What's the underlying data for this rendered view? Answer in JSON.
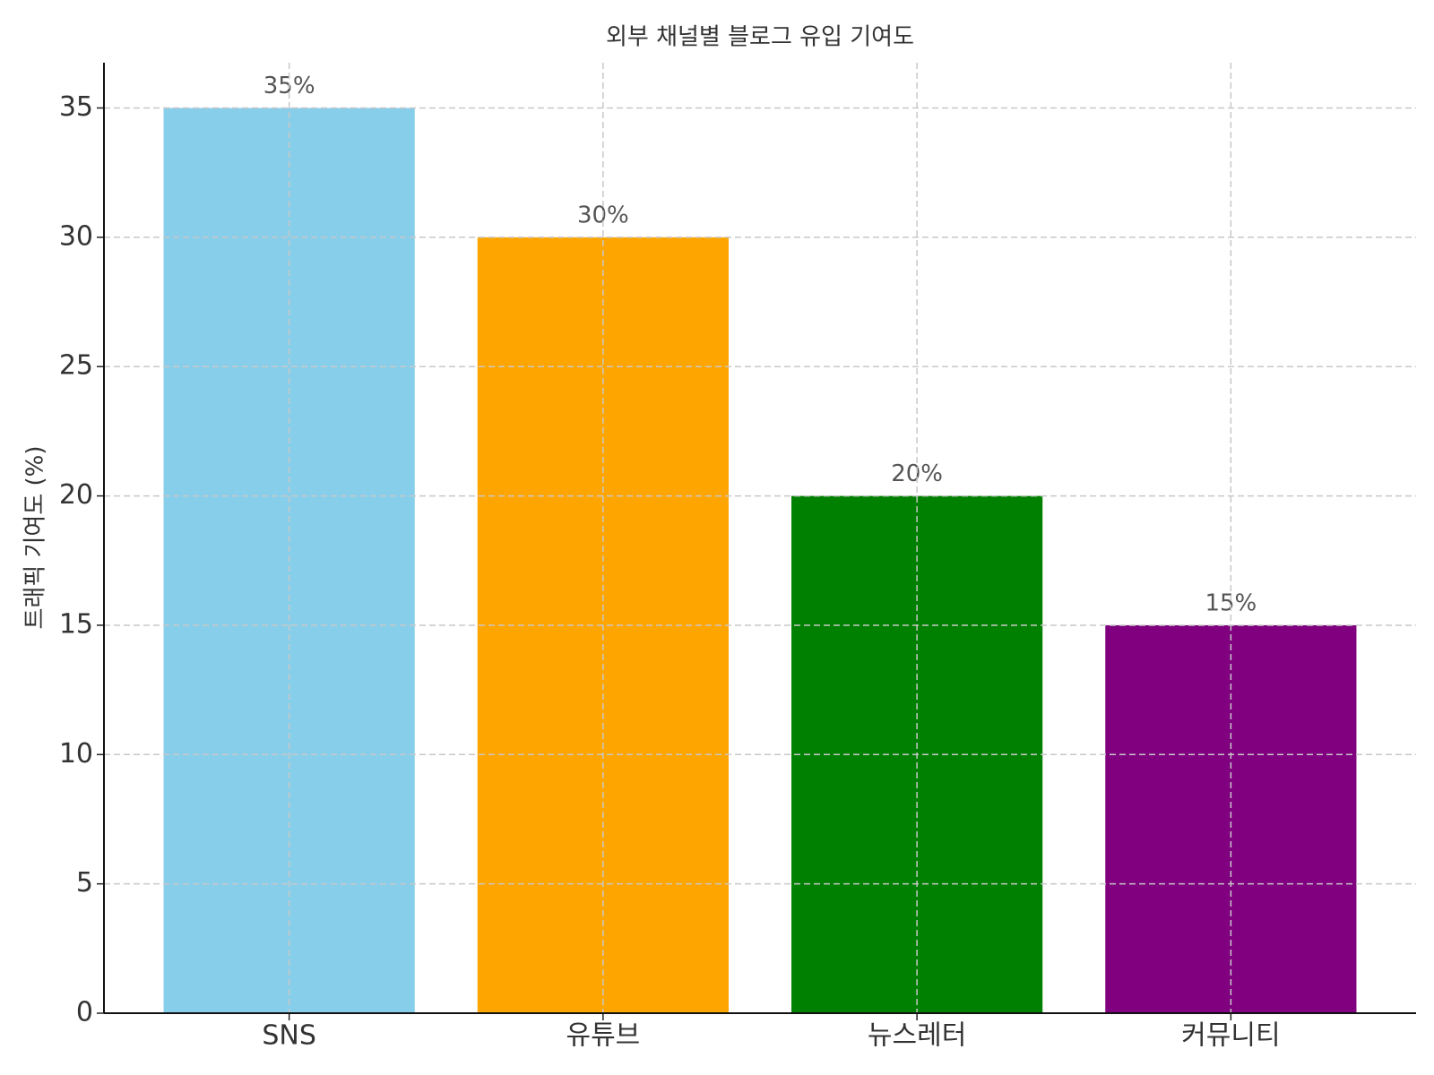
{
  "chart_data": {
    "type": "bar",
    "title": "외부 채널별 블로그 유입 기여도",
    "y_label": "트래픽 기여도 (%)",
    "categories": [
      "SNS",
      "유튜브",
      "뉴스레터",
      "커뮤니티"
    ],
    "values": [
      35,
      30,
      20,
      15
    ],
    "value_labels": [
      "35%",
      "30%",
      "20%",
      "15%"
    ],
    "colors": [
      "#87ceeb",
      "#ffa500",
      "#008000",
      "#800080"
    ],
    "ylim": [
      0,
      36.75
    ],
    "yticks": [
      0,
      5,
      10,
      15,
      20,
      25,
      30,
      35
    ],
    "grid": true
  }
}
